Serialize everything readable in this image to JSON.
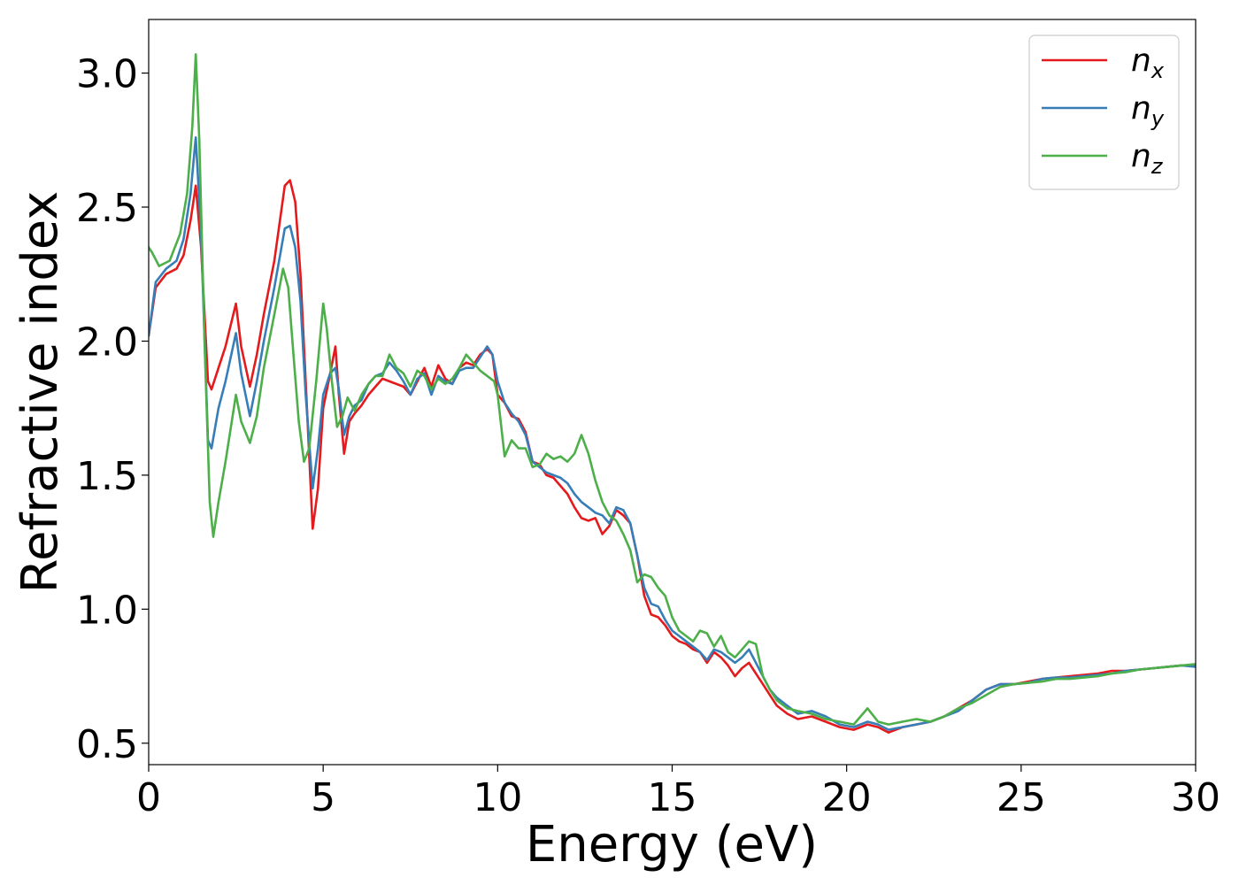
{
  "chart_data": {
    "type": "line",
    "title": "",
    "xlabel": "Energy (eV)",
    "ylabel": "Refractive index",
    "xlim": [
      0,
      30
    ],
    "ylim": [
      0.42,
      3.2
    ],
    "xticks": [
      0,
      5,
      10,
      15,
      20,
      25,
      30
    ],
    "xtick_labels": [
      "0",
      "5",
      "10",
      "15",
      "20",
      "25",
      "30"
    ],
    "yticks": [
      0.5,
      1.0,
      1.5,
      2.0,
      2.5,
      3.0
    ],
    "ytick_labels": [
      "0.5",
      "1.0",
      "1.5",
      "2.0",
      "2.5",
      "3.0"
    ],
    "grid": false,
    "legend_position": "top-right",
    "series": [
      {
        "name": "n",
        "subscript": "x",
        "color": "#e41a1c",
        "x": [
          0,
          0.2,
          0.5,
          0.8,
          1.0,
          1.2,
          1.35,
          1.5,
          1.7,
          1.8,
          2.0,
          2.2,
          2.5,
          2.65,
          2.9,
          3.1,
          3.3,
          3.6,
          3.9,
          4.05,
          4.2,
          4.35,
          4.5,
          4.7,
          4.85,
          5.0,
          5.2,
          5.35,
          5.45,
          5.6,
          5.75,
          5.9,
          6.1,
          6.3,
          6.5,
          6.7,
          6.9,
          7.1,
          7.3,
          7.5,
          7.7,
          7.9,
          8.1,
          8.3,
          8.5,
          8.7,
          8.9,
          9.1,
          9.3,
          9.5,
          9.7,
          9.85,
          10.0,
          10.2,
          10.4,
          10.6,
          10.8,
          11.0,
          11.2,
          11.4,
          11.6,
          11.8,
          12.0,
          12.2,
          12.4,
          12.6,
          12.8,
          13.0,
          13.2,
          13.4,
          13.6,
          13.8,
          14.0,
          14.2,
          14.4,
          14.6,
          14.8,
          15.0,
          15.2,
          15.4,
          15.6,
          15.8,
          16.0,
          16.2,
          16.4,
          16.6,
          16.8,
          17.0,
          17.2,
          17.4,
          17.6,
          17.8,
          18.0,
          18.3,
          18.6,
          19.0,
          19.4,
          19.8,
          20.2,
          20.6,
          20.9,
          21.2,
          21.6,
          22.0,
          22.4,
          22.8,
          23.2,
          23.6,
          24.0,
          24.4,
          24.8,
          25.2,
          25.6,
          26.0,
          26.4,
          26.8,
          27.2,
          27.6,
          28.0,
          28.4,
          28.8,
          29.2,
          29.6,
          30.0
        ],
        "y": [
          2.02,
          2.2,
          2.25,
          2.27,
          2.32,
          2.45,
          2.58,
          2.35,
          1.85,
          1.82,
          1.9,
          1.98,
          2.14,
          1.98,
          1.83,
          1.95,
          2.1,
          2.3,
          2.58,
          2.6,
          2.52,
          2.25,
          1.85,
          1.3,
          1.45,
          1.75,
          1.88,
          1.98,
          1.8,
          1.58,
          1.7,
          1.73,
          1.76,
          1.8,
          1.83,
          1.86,
          1.85,
          1.84,
          1.83,
          1.8,
          1.85,
          1.9,
          1.83,
          1.91,
          1.86,
          1.84,
          1.9,
          1.92,
          1.91,
          1.95,
          1.97,
          1.95,
          1.8,
          1.77,
          1.72,
          1.71,
          1.66,
          1.55,
          1.54,
          1.5,
          1.49,
          1.46,
          1.43,
          1.38,
          1.34,
          1.33,
          1.34,
          1.28,
          1.31,
          1.37,
          1.35,
          1.32,
          1.2,
          1.05,
          0.98,
          0.97,
          0.94,
          0.9,
          0.88,
          0.87,
          0.85,
          0.84,
          0.8,
          0.84,
          0.82,
          0.79,
          0.75,
          0.78,
          0.8,
          0.76,
          0.72,
          0.68,
          0.64,
          0.61,
          0.59,
          0.6,
          0.58,
          0.56,
          0.55,
          0.57,
          0.56,
          0.54,
          0.56,
          0.57,
          0.58,
          0.6,
          0.63,
          0.66,
          0.7,
          0.72,
          0.72,
          0.73,
          0.74,
          0.745,
          0.75,
          0.755,
          0.76,
          0.77,
          0.77,
          0.775,
          0.78,
          0.785,
          0.79,
          0.79
        ]
      },
      {
        "name": "n",
        "subscript": "y",
        "color": "#377eb8",
        "x": [
          0,
          0.2,
          0.5,
          0.8,
          1.0,
          1.2,
          1.35,
          1.5,
          1.7,
          1.8,
          2.0,
          2.2,
          2.5,
          2.65,
          2.9,
          3.1,
          3.3,
          3.6,
          3.9,
          4.05,
          4.2,
          4.35,
          4.5,
          4.7,
          4.85,
          5.0,
          5.2,
          5.35,
          5.45,
          5.6,
          5.75,
          5.9,
          6.1,
          6.3,
          6.5,
          6.7,
          6.9,
          7.1,
          7.3,
          7.5,
          7.7,
          7.9,
          8.1,
          8.3,
          8.5,
          8.7,
          8.9,
          9.1,
          9.3,
          9.5,
          9.7,
          9.85,
          10.0,
          10.2,
          10.4,
          10.6,
          10.8,
          11.0,
          11.2,
          11.4,
          11.6,
          11.8,
          12.0,
          12.2,
          12.4,
          12.6,
          12.8,
          13.0,
          13.2,
          13.4,
          13.6,
          13.8,
          14.0,
          14.2,
          14.4,
          14.6,
          14.8,
          15.0,
          15.2,
          15.4,
          15.6,
          15.8,
          16.0,
          16.2,
          16.4,
          16.6,
          16.8,
          17.0,
          17.2,
          17.4,
          17.6,
          17.8,
          18.0,
          18.3,
          18.6,
          19.0,
          19.4,
          19.8,
          20.2,
          20.6,
          20.9,
          21.2,
          21.6,
          22.0,
          22.4,
          22.8,
          23.2,
          23.6,
          24.0,
          24.4,
          24.8,
          25.2,
          25.6,
          26.0,
          26.4,
          26.8,
          27.2,
          27.6,
          28.0,
          28.4,
          28.8,
          29.2,
          29.6,
          30.0
        ],
        "y": [
          2.02,
          2.22,
          2.27,
          2.3,
          2.38,
          2.55,
          2.76,
          2.4,
          1.63,
          1.6,
          1.75,
          1.85,
          2.03,
          1.88,
          1.72,
          1.85,
          2.0,
          2.2,
          2.42,
          2.43,
          2.35,
          2.15,
          1.8,
          1.45,
          1.6,
          1.8,
          1.88,
          1.9,
          1.82,
          1.65,
          1.72,
          1.76,
          1.78,
          1.84,
          1.87,
          1.88,
          1.92,
          1.89,
          1.85,
          1.8,
          1.86,
          1.88,
          1.8,
          1.87,
          1.85,
          1.84,
          1.89,
          1.9,
          1.9,
          1.94,
          1.98,
          1.95,
          1.85,
          1.77,
          1.73,
          1.7,
          1.65,
          1.55,
          1.53,
          1.51,
          1.5,
          1.49,
          1.47,
          1.43,
          1.4,
          1.38,
          1.36,
          1.35,
          1.32,
          1.38,
          1.37,
          1.32,
          1.2,
          1.08,
          1.02,
          1.01,
          0.96,
          0.92,
          0.9,
          0.88,
          0.86,
          0.84,
          0.81,
          0.85,
          0.84,
          0.82,
          0.8,
          0.82,
          0.85,
          0.8,
          0.75,
          0.7,
          0.67,
          0.64,
          0.61,
          0.62,
          0.6,
          0.57,
          0.56,
          0.58,
          0.57,
          0.55,
          0.56,
          0.57,
          0.58,
          0.6,
          0.62,
          0.66,
          0.7,
          0.72,
          0.72,
          0.725,
          0.74,
          0.745,
          0.745,
          0.75,
          0.755,
          0.76,
          0.77,
          0.775,
          0.78,
          0.785,
          0.79,
          0.785
        ]
      },
      {
        "name": "n",
        "subscript": "z",
        "color": "#4daf4a",
        "x": [
          0,
          0.1,
          0.3,
          0.6,
          0.9,
          1.1,
          1.25,
          1.35,
          1.45,
          1.6,
          1.75,
          1.85,
          2.0,
          2.2,
          2.5,
          2.65,
          2.9,
          3.1,
          3.3,
          3.6,
          3.85,
          4.0,
          4.15,
          4.3,
          4.45,
          4.6,
          4.8,
          5.0,
          5.1,
          5.25,
          5.4,
          5.55,
          5.7,
          5.9,
          6.1,
          6.3,
          6.5,
          6.7,
          6.9,
          7.1,
          7.3,
          7.5,
          7.7,
          7.9,
          8.1,
          8.3,
          8.5,
          8.7,
          8.9,
          9.1,
          9.3,
          9.5,
          9.7,
          9.9,
          10.0,
          10.2,
          10.4,
          10.6,
          10.8,
          11.0,
          11.2,
          11.4,
          11.6,
          11.8,
          12.0,
          12.2,
          12.4,
          12.6,
          12.8,
          13.0,
          13.2,
          13.4,
          13.6,
          13.8,
          14.0,
          14.2,
          14.4,
          14.6,
          14.8,
          15.0,
          15.2,
          15.4,
          15.6,
          15.8,
          16.0,
          16.2,
          16.4,
          16.6,
          16.8,
          17.0,
          17.2,
          17.4,
          17.6,
          17.8,
          18.0,
          18.3,
          18.6,
          19.0,
          19.4,
          19.8,
          20.2,
          20.6,
          20.9,
          21.2,
          21.6,
          22.0,
          22.4,
          22.8,
          23.2,
          23.6,
          24.0,
          24.4,
          24.8,
          25.2,
          25.6,
          26.0,
          26.4,
          26.8,
          27.2,
          27.6,
          28.0,
          28.4,
          28.8,
          29.2,
          29.6,
          30.0
        ],
        "y": [
          2.35,
          2.33,
          2.28,
          2.3,
          2.4,
          2.55,
          2.8,
          3.07,
          2.75,
          2.0,
          1.4,
          1.27,
          1.4,
          1.55,
          1.8,
          1.7,
          1.62,
          1.72,
          1.9,
          2.1,
          2.27,
          2.2,
          1.95,
          1.7,
          1.55,
          1.6,
          1.85,
          2.14,
          2.05,
          1.85,
          1.68,
          1.72,
          1.79,
          1.74,
          1.8,
          1.84,
          1.87,
          1.87,
          1.95,
          1.9,
          1.88,
          1.83,
          1.89,
          1.87,
          1.82,
          1.86,
          1.84,
          1.86,
          1.9,
          1.95,
          1.92,
          1.89,
          1.87,
          1.85,
          1.8,
          1.57,
          1.63,
          1.6,
          1.6,
          1.53,
          1.54,
          1.58,
          1.56,
          1.57,
          1.55,
          1.58,
          1.65,
          1.58,
          1.48,
          1.4,
          1.35,
          1.33,
          1.28,
          1.22,
          1.1,
          1.13,
          1.12,
          1.08,
          1.05,
          0.97,
          0.92,
          0.9,
          0.88,
          0.92,
          0.91,
          0.86,
          0.9,
          0.84,
          0.82,
          0.85,
          0.88,
          0.87,
          0.75,
          0.7,
          0.66,
          0.63,
          0.62,
          0.61,
          0.59,
          0.58,
          0.57,
          0.63,
          0.58,
          0.57,
          0.58,
          0.59,
          0.58,
          0.6,
          0.63,
          0.65,
          0.68,
          0.71,
          0.72,
          0.725,
          0.73,
          0.74,
          0.74,
          0.745,
          0.75,
          0.76,
          0.765,
          0.775,
          0.78,
          0.785,
          0.79,
          0.795
        ]
      }
    ]
  }
}
